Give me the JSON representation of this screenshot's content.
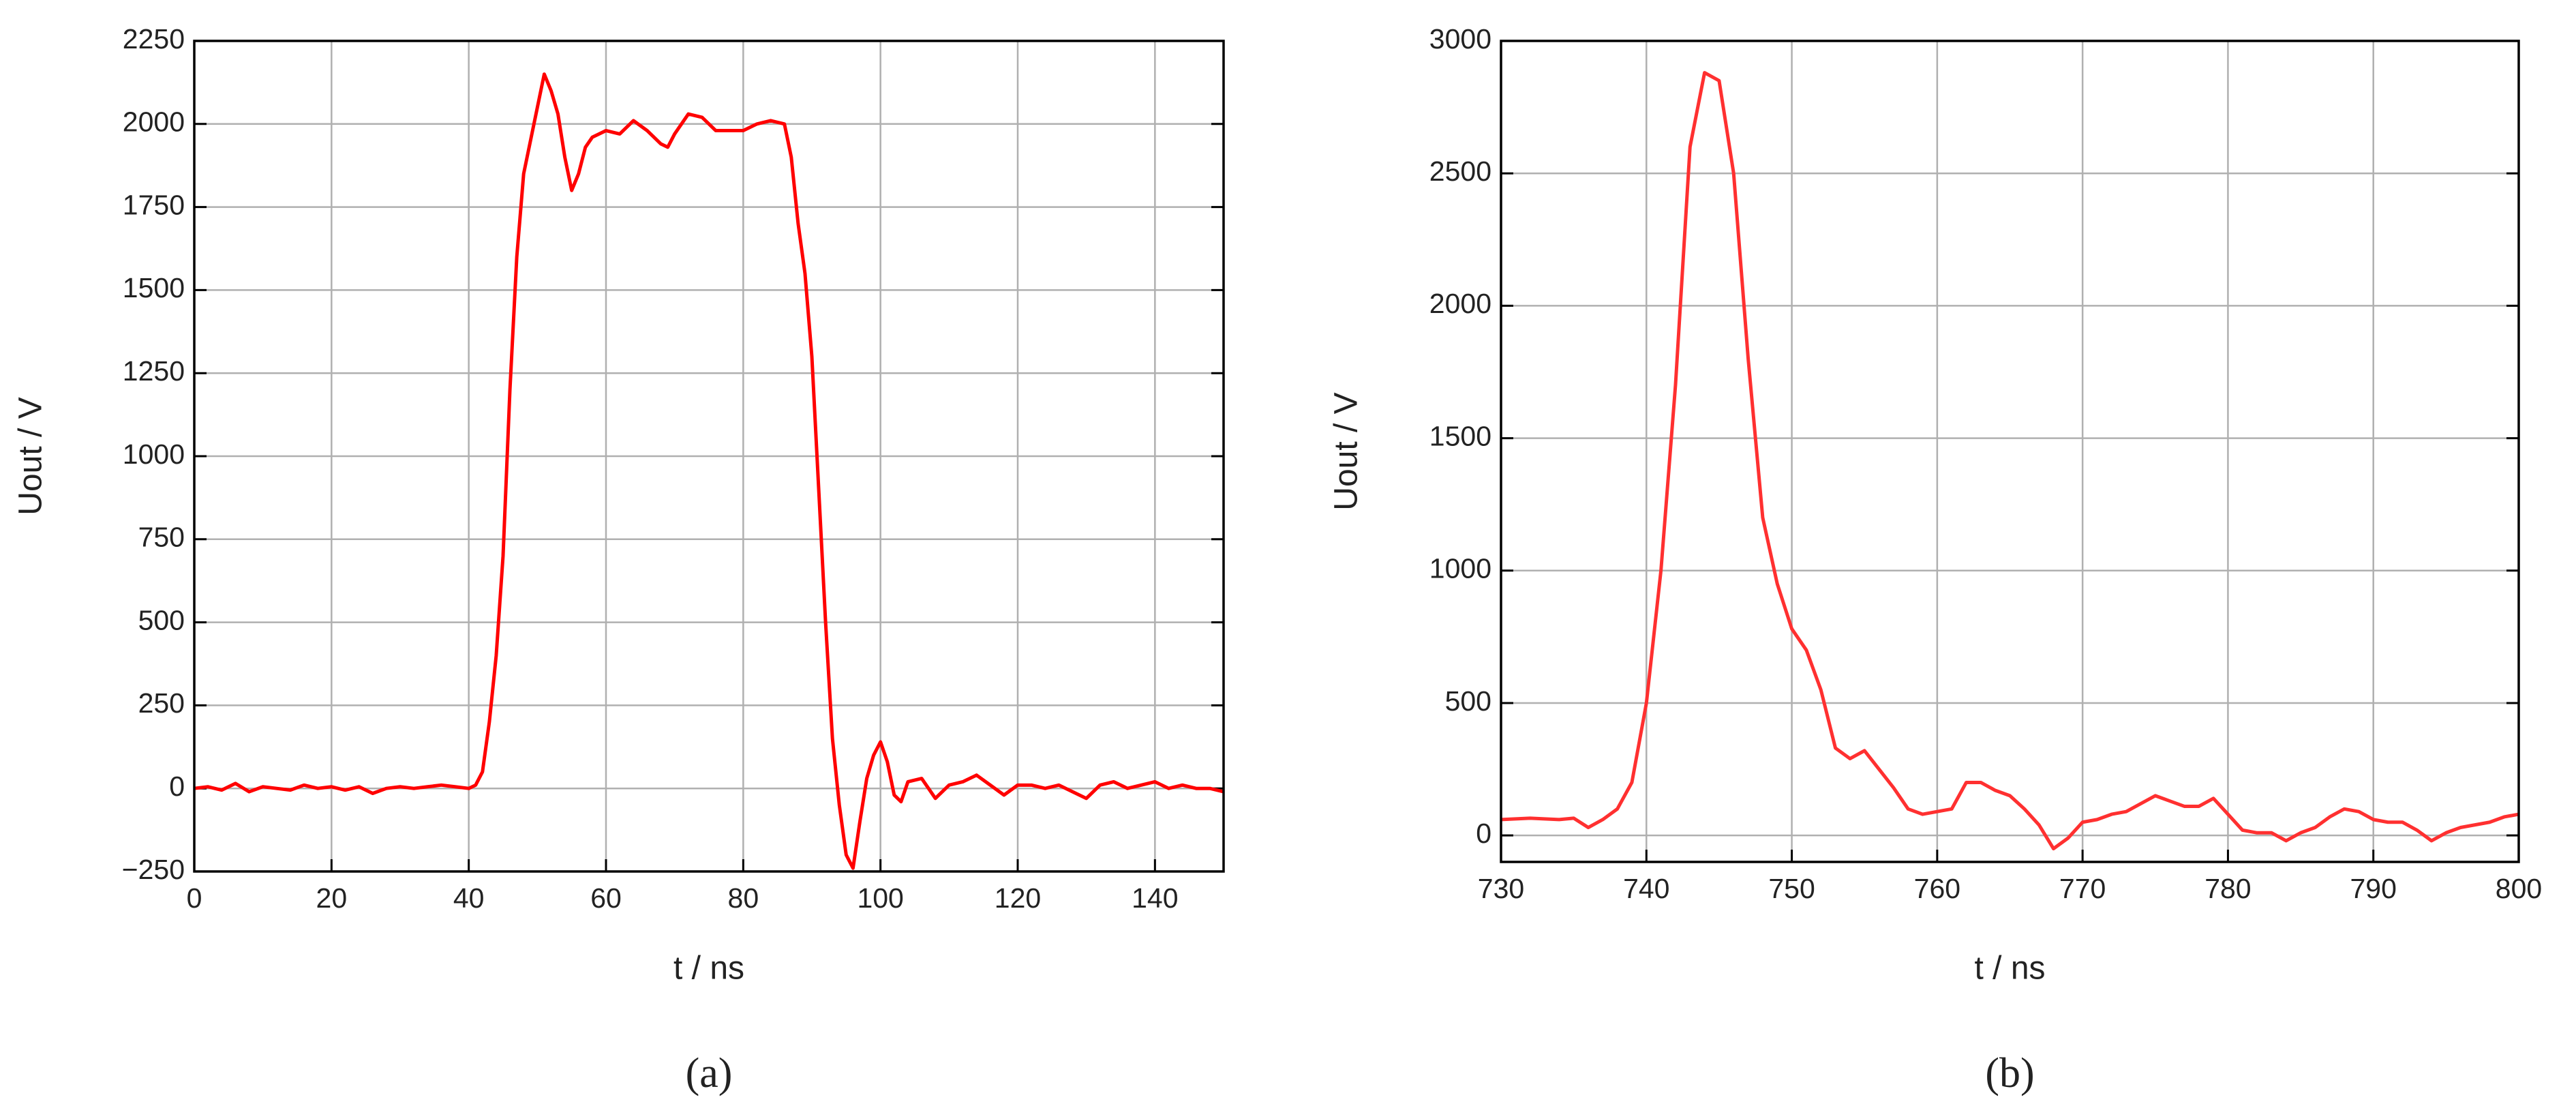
{
  "chart_data": [
    {
      "type": "line",
      "caption": "(a)",
      "x_label": "t / ns",
      "y_label": "Uout / V",
      "xlim": [
        0,
        150
      ],
      "ylim": [
        -250,
        2250
      ],
      "xticks": [
        0,
        20,
        40,
        60,
        80,
        100,
        120,
        140
      ],
      "yticks": [
        {
          "value": -250,
          "label": "−250"
        },
        0,
        250,
        500,
        750,
        1000,
        1250,
        1500,
        1750,
        2000,
        2250
      ],
      "grid": true,
      "x": [
        0,
        2,
        4,
        6,
        8,
        10,
        12,
        14,
        16,
        18,
        20,
        22,
        24,
        26,
        28,
        30,
        32,
        34,
        36,
        38,
        40,
        41,
        42,
        43,
        44,
        45,
        46,
        47,
        48,
        49,
        50,
        51,
        52,
        53,
        54,
        55,
        56,
        57,
        58,
        60,
        62,
        64,
        66,
        68,
        69,
        70,
        72,
        74,
        76,
        78,
        80,
        82,
        84,
        86,
        87,
        88,
        89,
        90,
        91,
        92,
        93,
        94,
        95,
        96,
        97,
        98,
        99,
        100,
        101,
        102,
        103,
        104,
        106,
        108,
        110,
        112,
        114,
        116,
        118,
        120,
        122,
        124,
        126,
        128,
        130,
        132,
        134,
        136,
        138,
        140,
        142,
        144,
        146,
        148,
        150
      ],
      "series": [
        {
          "name": "Uout",
          "color": "#ff0000",
          "values": [
            0,
            5,
            -5,
            15,
            -10,
            5,
            0,
            -5,
            10,
            0,
            5,
            -5,
            5,
            -15,
            0,
            5,
            0,
            5,
            10,
            5,
            0,
            10,
            50,
            200,
            400,
            700,
            1200,
            1600,
            1850,
            1950,
            2050,
            2150,
            2100,
            2030,
            1900,
            1800,
            1850,
            1930,
            1960,
            1980,
            1970,
            2010,
            1980,
            1940,
            1930,
            1970,
            2030,
            2020,
            1980,
            1980,
            1980,
            2000,
            2010,
            2000,
            1900,
            1700,
            1550,
            1300,
            900,
            500,
            150,
            -50,
            -200,
            -240,
            -100,
            30,
            100,
            140,
            80,
            -20,
            -40,
            20,
            30,
            -30,
            10,
            20,
            40,
            10,
            -20,
            10,
            10,
            0,
            10,
            -10,
            -30,
            10,
            20,
            0,
            10,
            20,
            0,
            10,
            0,
            0,
            -10
          ]
        }
      ]
    },
    {
      "type": "line",
      "caption": "(b)",
      "x_label": "t / ns",
      "y_label": "Uout / V",
      "xlim": [
        730,
        800
      ],
      "ylim": [
        -100,
        3000
      ],
      "xticks": [
        730,
        740,
        750,
        760,
        770,
        780,
        790,
        800
      ],
      "yticks": [
        0,
        500,
        1000,
        1500,
        2000,
        2500,
        3000
      ],
      "grid": true,
      "x": [
        730,
        732,
        734,
        735,
        736,
        737,
        738,
        739,
        740,
        741,
        742,
        743,
        744,
        745,
        746,
        747,
        748,
        749,
        750,
        751,
        752,
        753,
        754,
        755,
        756,
        757,
        758,
        759,
        760,
        761,
        762,
        763,
        764,
        765,
        766,
        767,
        768,
        769,
        770,
        771,
        772,
        773,
        774,
        775,
        776,
        777,
        778,
        779,
        780,
        781,
        782,
        783,
        784,
        785,
        786,
        787,
        788,
        789,
        790,
        791,
        792,
        793,
        794,
        795,
        796,
        797,
        798,
        799,
        800
      ],
      "series": [
        {
          "name": "Uout",
          "color": "#ff3030",
          "values": [
            60,
            65,
            60,
            65,
            30,
            60,
            100,
            200,
            500,
            1000,
            1700,
            2600,
            2880,
            2850,
            2500,
            1800,
            1200,
            950,
            780,
            700,
            550,
            330,
            290,
            320,
            250,
            180,
            100,
            80,
            90,
            100,
            200,
            200,
            170,
            150,
            100,
            40,
            -50,
            -10,
            50,
            60,
            80,
            90,
            120,
            150,
            130,
            110,
            110,
            140,
            80,
            20,
            10,
            10,
            -20,
            10,
            30,
            70,
            100,
            90,
            60,
            50,
            50,
            20,
            -20,
            10,
            30,
            40,
            50,
            70,
            80
          ]
        }
      ]
    }
  ]
}
